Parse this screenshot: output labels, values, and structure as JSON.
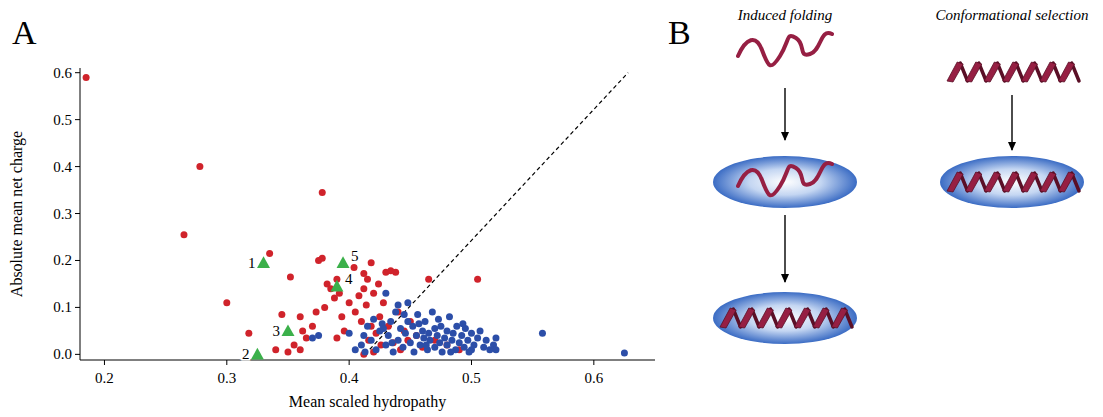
{
  "chart_data": {
    "type": "scatter",
    "panel_label": "A",
    "x_label": "Mean scaled hydropathy",
    "y_label": "Absolute mean net charge",
    "xlim": [
      0.18,
      0.65
    ],
    "ylim": [
      -0.012,
      0.61
    ],
    "xticks": [
      0.2,
      0.3,
      0.4,
      0.5,
      0.6
    ],
    "yticks": [
      {
        "value": 0,
        "label": "0.0"
      },
      0.1,
      0.2,
      0.3,
      0.4,
      0.5,
      0.6
    ],
    "grid": false,
    "reference_line": {
      "x": [
        0.413,
        0.628
      ],
      "y": [
        0,
        0.6
      ],
      "line_style": "dashed"
    },
    "series": [
      {
        "color": "#d0232b",
        "marker": "circle",
        "x": [
          0.185,
          0.265,
          0.278,
          0.3,
          0.335,
          0.378,
          0.352,
          0.318,
          0.362,
          0.35,
          0.34,
          0.355,
          0.36,
          0.365,
          0.37,
          0.373,
          0.375,
          0.378,
          0.38,
          0.382,
          0.385,
          0.388,
          0.39,
          0.392,
          0.394,
          0.396,
          0.412,
          0.4,
          0.418,
          0.404,
          0.405,
          0.412,
          0.408,
          0.41,
          0.412,
          0.414,
          0.415,
          0.416,
          0.418,
          0.42,
          0.42,
          0.422,
          0.424,
          0.425,
          0.426,
          0.428,
          0.43,
          0.432,
          0.434,
          0.436,
          0.438,
          0.44,
          0.442,
          0.445,
          0.448,
          0.45,
          0.455,
          0.46,
          0.465,
          0.47,
          0.48,
          0.49,
          0.505,
          0.345,
          0.39,
          0.36
        ],
        "values": [
          0.59,
          0.255,
          0.4,
          0.11,
          0.215,
          0.345,
          0.165,
          0.045,
          0.05,
          0.005,
          0.01,
          0.02,
          0.08,
          0.035,
          0.06,
          0.09,
          0.2,
          0.205,
          0.1,
          0.15,
          0.14,
          0.12,
          0.16,
          0.13,
          0.08,
          0.05,
          0.172,
          0.11,
          0.195,
          0.185,
          0.09,
          0.14,
          0.125,
          0.07,
          0.0,
          0.105,
          0.16,
          0.03,
          0.06,
          0.13,
          0.005,
          0.045,
          0.15,
          0.08,
          0.02,
          0.11,
          0.175,
          0.06,
          0.178,
          0.025,
          0.175,
          0.09,
          0.01,
          0.05,
          0.03,
          0.07,
          0.04,
          0.015,
          0.16,
          0.03,
          0.02,
          0.01,
          0.16,
          0.085,
          0.035,
          0.01
        ]
      },
      {
        "color": "#2c4ea8",
        "marker": "circle",
        "x": [
          0.405,
          0.41,
          0.412,
          0.415,
          0.418,
          0.42,
          0.422,
          0.425,
          0.427,
          0.43,
          0.43,
          0.432,
          0.434,
          0.436,
          0.438,
          0.44,
          0.44,
          0.442,
          0.444,
          0.446,
          0.448,
          0.448,
          0.45,
          0.452,
          0.453,
          0.455,
          0.456,
          0.458,
          0.46,
          0.461,
          0.462,
          0.464,
          0.465,
          0.466,
          0.468,
          0.47,
          0.47,
          0.472,
          0.474,
          0.475,
          0.476,
          0.478,
          0.48,
          0.48,
          0.482,
          0.484,
          0.485,
          0.487,
          0.488,
          0.49,
          0.492,
          0.494,
          0.495,
          0.497,
          0.5,
          0.5,
          0.502,
          0.505,
          0.507,
          0.51,
          0.512,
          0.515,
          0.518,
          0.52,
          0.52,
          0.558,
          0.625,
          0.37,
          0.375,
          0.428,
          0.435,
          0.445,
          0.457,
          0.463,
          0.473,
          0.483,
          0.493,
          0.498,
          0.413,
          0.4
        ],
        "values": [
          0.01,
          0.02,
          0.04,
          0.06,
          0.03,
          0.075,
          0.01,
          0.05,
          0.065,
          0.02,
          0.13,
          0.04,
          0.07,
          0.005,
          0.09,
          0.105,
          0.03,
          0.055,
          0.015,
          0.045,
          0.11,
          0.07,
          0.025,
          0.06,
          0.005,
          0.04,
          0.085,
          0.02,
          0.05,
          0.035,
          0.07,
          0.01,
          0.045,
          0.03,
          0.09,
          0.055,
          0.015,
          0.04,
          0.025,
          0.06,
          0.005,
          0.035,
          0.05,
          0.02,
          0.08,
          0.03,
          0.045,
          0.01,
          0.06,
          0.025,
          0.04,
          0.015,
          0.055,
          0.03,
          0.045,
          0.01,
          0.02,
          0.035,
          0.05,
          0.015,
          0.03,
          0.01,
          0.02,
          0.035,
          0.01,
          0.045,
          0.003,
          0.035,
          0.04,
          0.055,
          0.025,
          0.085,
          0.065,
          0.02,
          0.075,
          0.005,
          0.065,
          0.005,
          0.005,
          0.045
        ]
      },
      {
        "color": "#3bb04a",
        "marker": "triangle",
        "x": [
          0.33,
          0.325,
          0.35,
          0.39,
          0.395
        ],
        "values": [
          0.195,
          0.0,
          0.05,
          0.145,
          0.195
        ],
        "labels": [
          "1",
          "2",
          "3",
          "4",
          "5"
        ]
      }
    ]
  },
  "diagram": {
    "panel_label": "B",
    "columns": [
      {
        "title": "Induced folding"
      },
      {
        "title": "Conformational selection"
      }
    ]
  }
}
